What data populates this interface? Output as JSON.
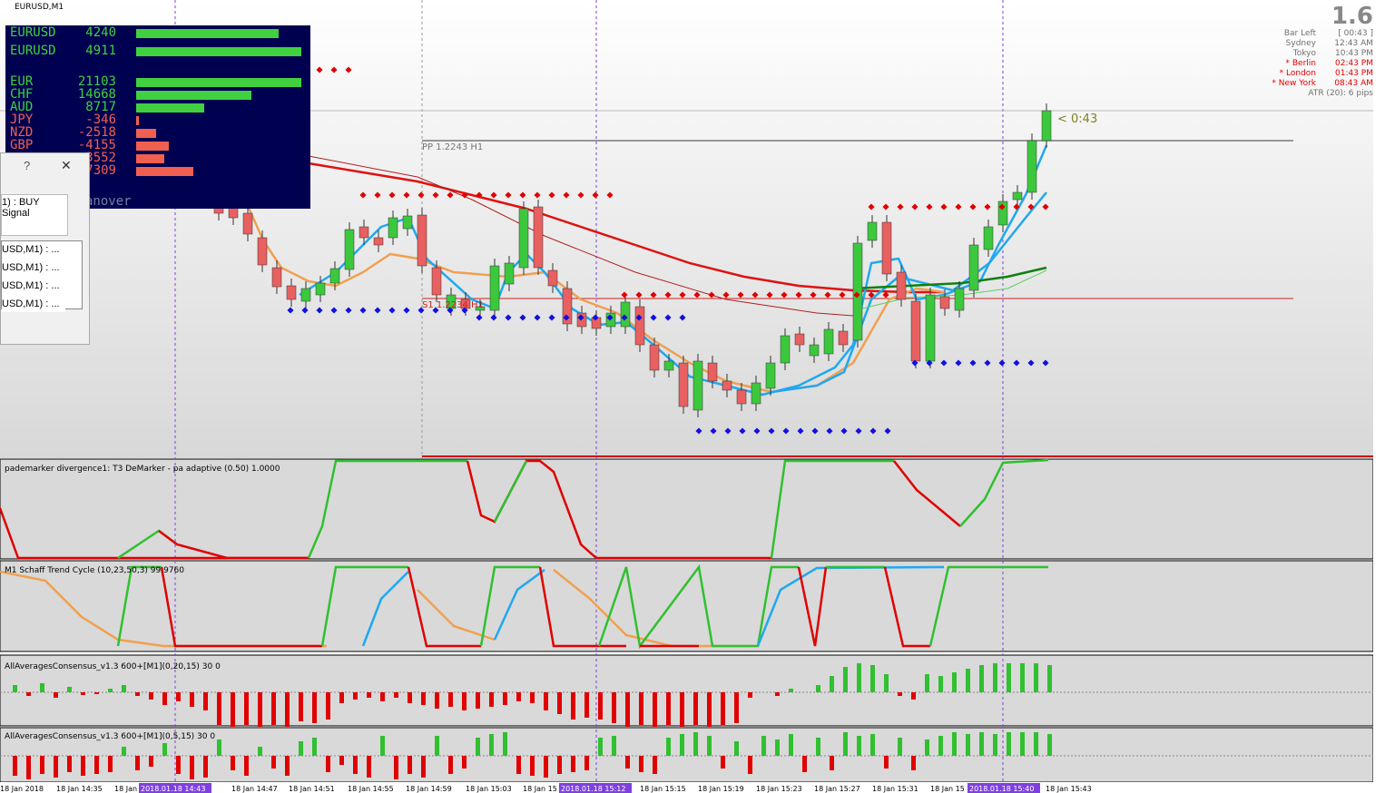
{
  "window_title": "EURUSD,M1",
  "strength_panel": {
    "pairs": [
      {
        "symbol": "EURUSD",
        "value": 4240
      },
      {
        "symbol": "EURUSD",
        "value": 4911
      }
    ],
    "currencies": [
      {
        "symbol": "EUR",
        "value": 21103
      },
      {
        "symbol": "CHF",
        "value": 14668
      },
      {
        "symbol": "AUD",
        "value": 8717
      },
      {
        "symbol": "JPY",
        "value": -346
      },
      {
        "symbol": "NZD",
        "value": -2518
      },
      {
        "symbol": "GBP",
        "value": -4155
      },
      {
        "value": -3552
      },
      {
        "value": -7309
      }
    ],
    "footer": "anover"
  },
  "dialog": {
    "help": "?",
    "close": "✕",
    "signal": "1) : BUY Signal",
    "items": [
      "USD,M1) : ...",
      "USD,M1) : ...",
      "USD,M1) : ...",
      "USD,M1) : ..."
    ]
  },
  "info": {
    "price": "1.6",
    "rows": [
      {
        "label": "Bar Left",
        "value": "[ 00:43 ]",
        "color": "#707070"
      },
      {
        "label": "Sydney",
        "value": "12:43 AM",
        "color": "#707070"
      },
      {
        "label": "Tokyo",
        "value": "10:43 PM",
        "color": "#707070"
      },
      {
        "label": "* Berlin",
        "value": "02:43 PM",
        "color": "#e00000"
      },
      {
        "label": "* London",
        "value": "01:43 PM",
        "color": "#e00000"
      },
      {
        "label": "* New York",
        "value": "08:43 AM",
        "color": "#e00000"
      }
    ],
    "atr": "ATR (20): 6 pips"
  },
  "chart_labels": {
    "countdown": "< 0:43",
    "pivot": "PP 1.2243 H1",
    "support": "S1 1.2234 H1"
  },
  "indicators": [
    "pademarker divergence1: T3 DeMarker - pa adaptive (0.50) 1.0000",
    "M1 Schaff Trend Cycle (10,23,50,3) 99.9760",
    "AllAveragesConsensus_v1.3 600+[M1](0,20,15) 30 0",
    "AllAveragesConsensus_v1.3 600+[M1](0,5,15) 30 0"
  ],
  "time_axis": [
    {
      "label": "18 Jan 2018"
    },
    {
      "label": "18 Jan 14:35"
    },
    {
      "label": "18 Jan"
    },
    {
      "label": "2018.01.18 14:43",
      "highlight": true
    },
    {
      "label": "18 Jan 14:47"
    },
    {
      "label": "18 Jan 14:51"
    },
    {
      "label": "18 Jan 14:55"
    },
    {
      "label": "18 Jan 14:59"
    },
    {
      "label": "18 Jan 15:03"
    },
    {
      "label": "18 Jan 15"
    },
    {
      "label": "2018.01.18 15:12",
      "highlight": true
    },
    {
      "label": "18 Jan 15:15"
    },
    {
      "label": "18 Jan 15:19"
    },
    {
      "label": "18 Jan 15:23"
    },
    {
      "label": "18 Jan 15:27"
    },
    {
      "label": "18 Jan 15:31"
    },
    {
      "label": "18 Jan 15"
    },
    {
      "label": "2018.01.18 15:40",
      "highlight": true
    },
    {
      "label": "18 Jan 15:43"
    }
  ]
}
